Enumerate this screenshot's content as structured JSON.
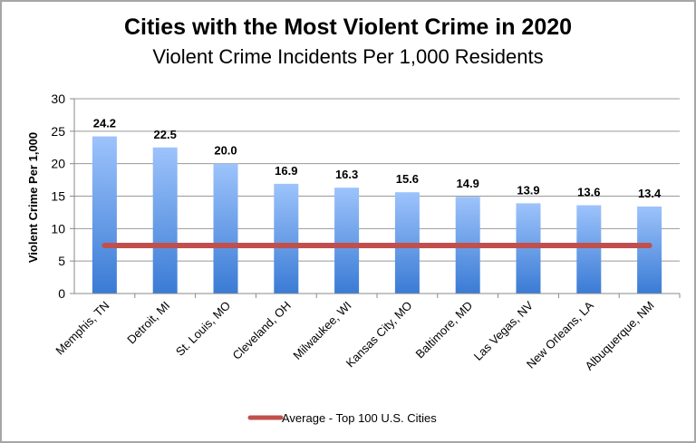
{
  "chart_data": {
    "type": "bar",
    "title": "Cities with the Most Violent Crime in 2020",
    "subtitle": "Violent Crime Incidents Per 1,000 Residents",
    "xlabel": "",
    "ylabel": "Violent Crime Per 1,000",
    "ylim": [
      0,
      30
    ],
    "yticks": [
      0,
      5,
      10,
      15,
      20,
      25,
      30
    ],
    "grid": true,
    "categories": [
      "Memphis, TN",
      "Detroit, MI",
      "St. Louis, MO",
      "Cleveland, OH",
      "Milwaukee, WI",
      "Kansas City, MO",
      "Baltimore, MD",
      "Las Vegas, NV",
      "New Orleans, LA",
      "Albuquerque, NM"
    ],
    "values": [
      24.2,
      22.5,
      20.0,
      16.9,
      16.3,
      15.6,
      14.9,
      13.9,
      13.6,
      13.4
    ],
    "data_labels": [
      "24.2",
      "22.5",
      "20.0",
      "16.9",
      "16.3",
      "15.6",
      "14.9",
      "13.9",
      "13.6",
      "13.4"
    ],
    "reference_line": {
      "name": "Average - Top 100 U.S. Cities",
      "value": 7.4,
      "color": "#c0504d"
    },
    "bar_color_top": "#9dc3fb",
    "bar_color_bottom": "#3a7bd5",
    "legend_position": "bottom"
  }
}
